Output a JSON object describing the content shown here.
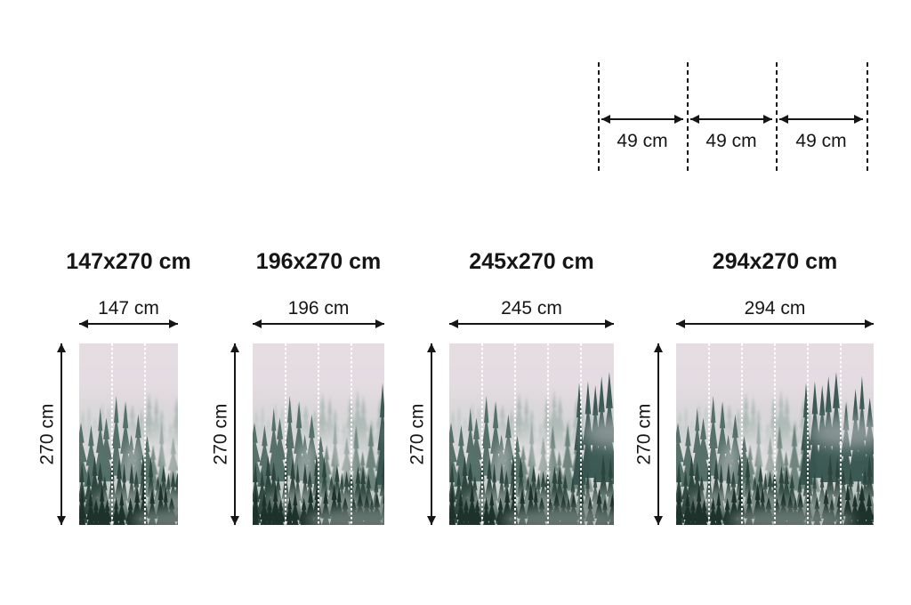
{
  "panel_diagram": {
    "segments": [
      {
        "label": "49 cm"
      },
      {
        "label": "49 cm"
      },
      {
        "label": "49 cm"
      }
    ],
    "segment_cm": 49
  },
  "murals": [
    {
      "title": "147x270 cm",
      "width_label": "147 cm",
      "height_label": "270 cm",
      "width_cm": 147,
      "height_cm": 270,
      "panels": 3
    },
    {
      "title": "196x270 cm",
      "width_label": "196 cm",
      "height_label": "270 cm",
      "width_cm": 196,
      "height_cm": 270,
      "panels": 4
    },
    {
      "title": "245x270 cm",
      "width_label": "245 cm",
      "height_label": "270 cm",
      "width_cm": 245,
      "height_cm": 270,
      "panels": 5
    },
    {
      "title": "294x270 cm",
      "width_label": "294 cm",
      "height_label": "270 cm",
      "width_cm": 294,
      "height_cm": 270,
      "panels": 6
    }
  ],
  "artwork": {
    "name": "misty-pine-forest-photo",
    "description": "foggy evergreen forest with pink haze"
  },
  "colors": {
    "text": "#161616",
    "background": "#ffffff",
    "panel_seam": "#ffffff",
    "fog_top": "#e6dde3",
    "fog_mid": "#e8e2e6",
    "forest_distant": "#8da49d",
    "forest_mid": "#45615a",
    "forest_dark": "#2b443d",
    "forest_foreground": "#1f322c"
  }
}
